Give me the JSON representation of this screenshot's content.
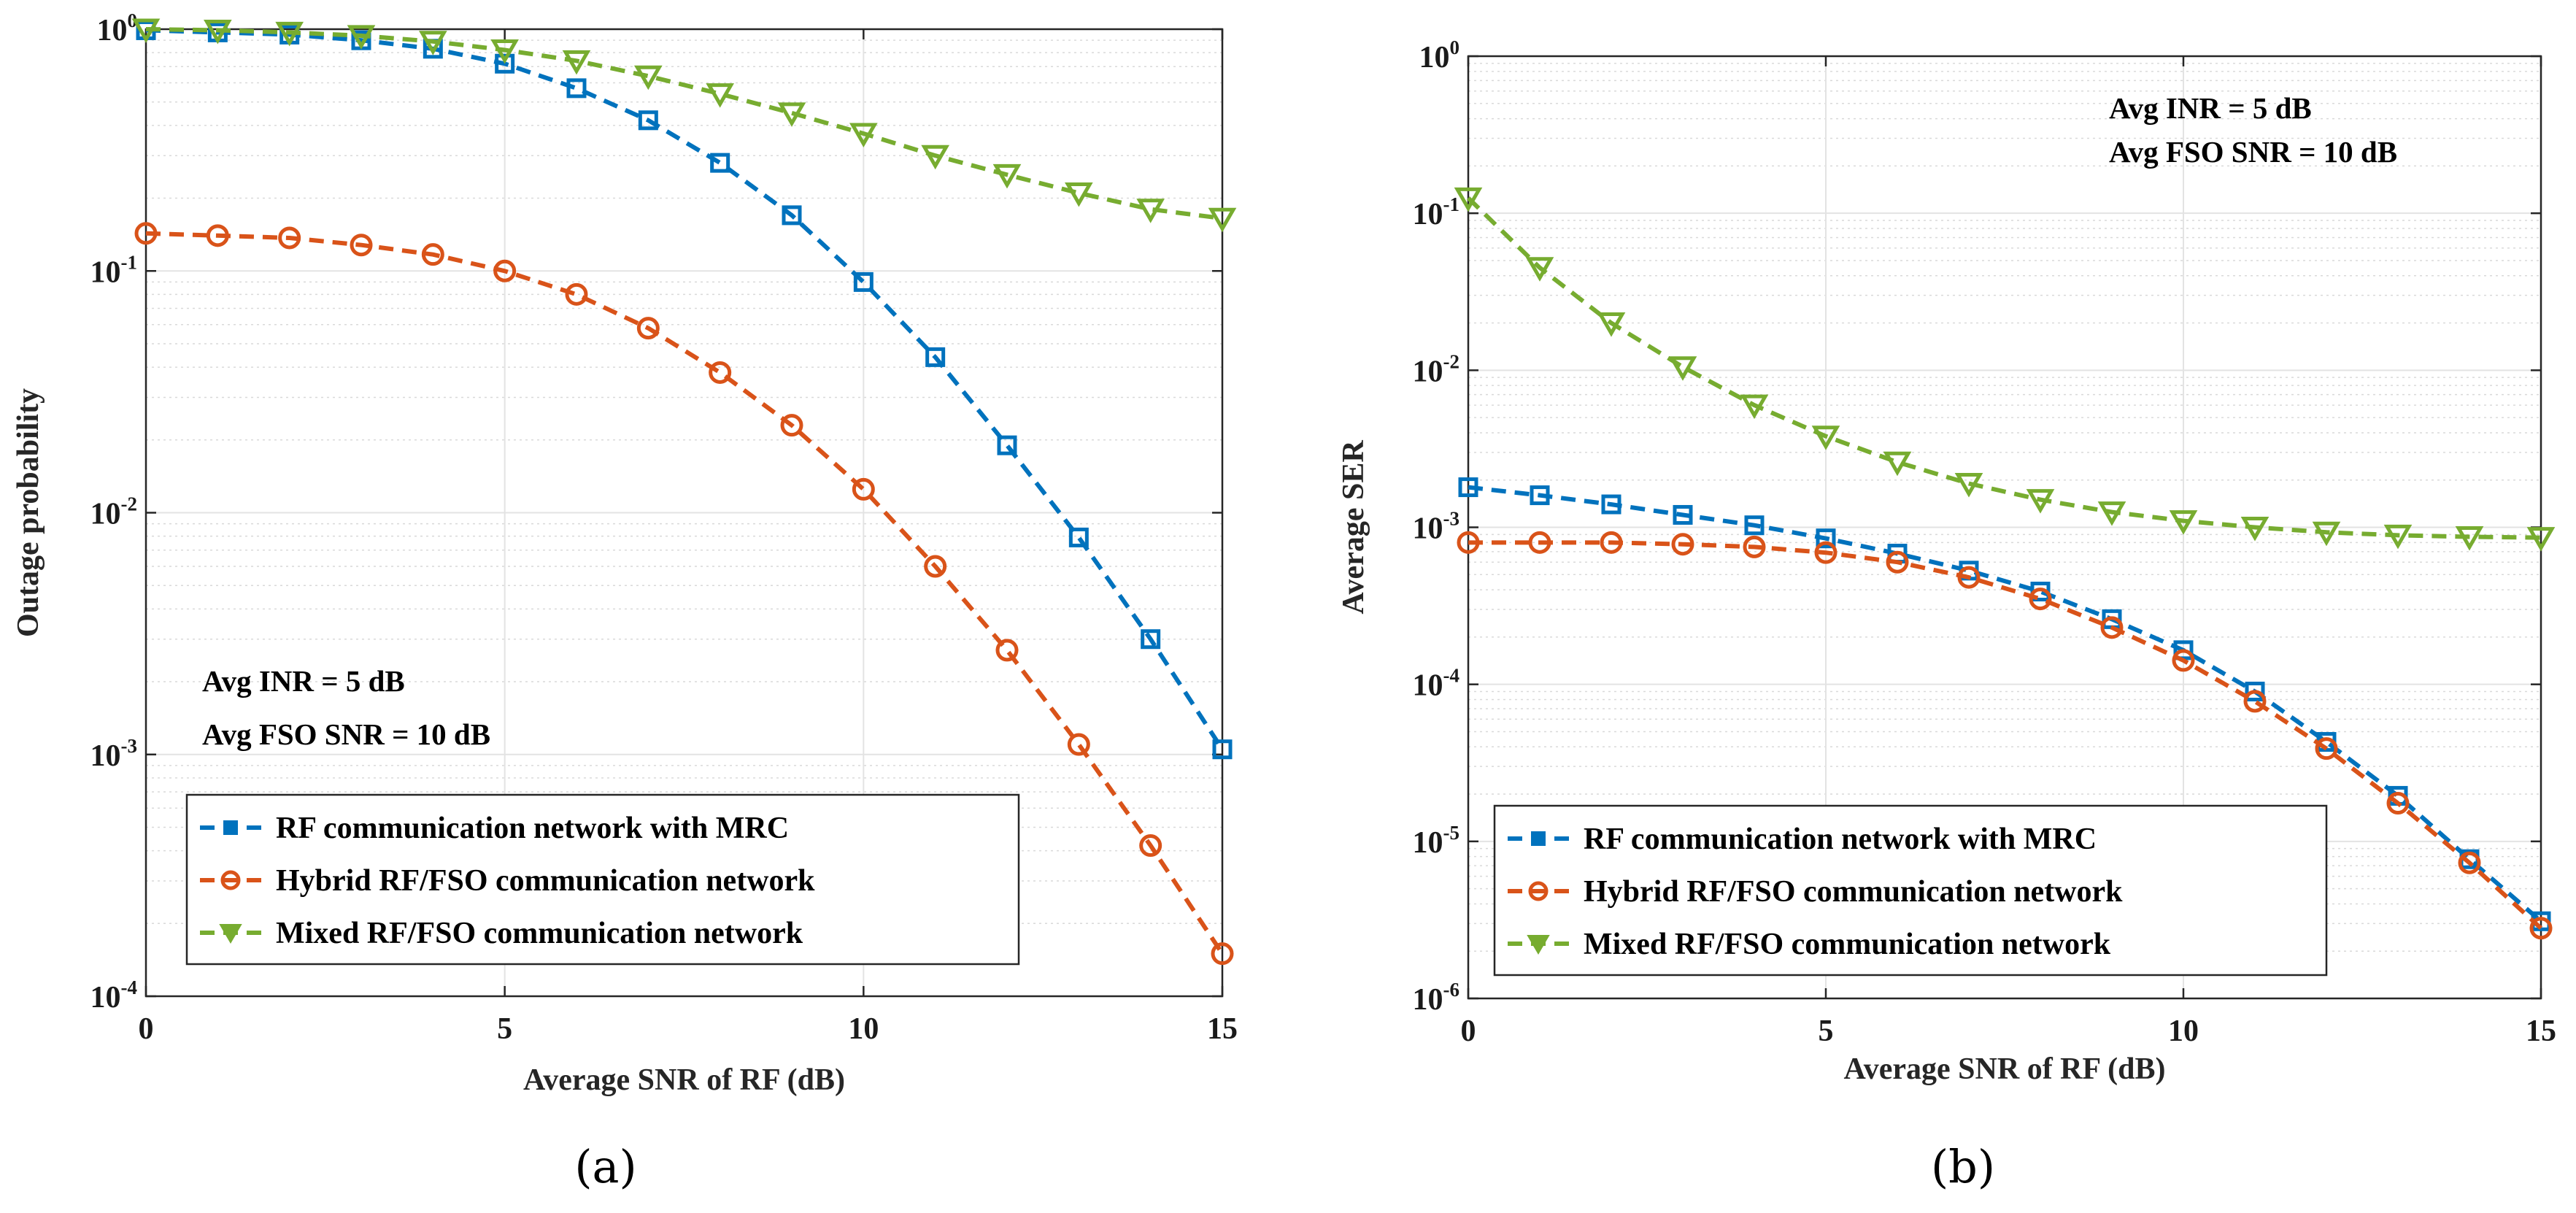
{
  "chart_data": [
    {
      "type": "line",
      "id": "a",
      "caption": "(a)",
      "xlabel": "Average SNR of RF (dB)",
      "ylabel": "Outage probability",
      "yscale": "log",
      "xlim": [
        0,
        15
      ],
      "ylim": [
        0.0001,
        1
      ],
      "xticks": [
        0,
        5,
        10,
        15
      ],
      "yticks": [
        {
          "value": 1,
          "base": "10",
          "exp": "0"
        },
        {
          "value": 0.1,
          "base": "10",
          "exp": "-1"
        },
        {
          "value": 0.01,
          "base": "10",
          "exp": "-2"
        },
        {
          "value": 0.001,
          "base": "10",
          "exp": "-3"
        },
        {
          "value": 0.0001,
          "base": "10",
          "exp": "-4"
        }
      ],
      "grid": true,
      "annotations": [
        "Avg INR = 5 dB",
        "Avg FSO SNR = 10 dB"
      ],
      "annotation_placement": "lower-left",
      "legend_placement": "bottom-left",
      "x": [
        0,
        1,
        2,
        3,
        4,
        5,
        6,
        7,
        8,
        9,
        10,
        11,
        12,
        13,
        14,
        15
      ],
      "series": [
        {
          "name": "RF communication network with MRC",
          "color": "#0072BD",
          "marker": "square",
          "values": [
            0.99,
            0.97,
            0.95,
            0.9,
            0.83,
            0.72,
            0.57,
            0.42,
            0.28,
            0.17,
            0.09,
            0.044,
            0.019,
            0.0079,
            0.003,
            0.00105
          ]
        },
        {
          "name": "Hybrid RF/FSO communication network",
          "color": "#D95319",
          "marker": "circle",
          "values": [
            0.143,
            0.14,
            0.137,
            0.128,
            0.117,
            0.1,
            0.08,
            0.058,
            0.038,
            0.023,
            0.0125,
            0.006,
            0.0027,
            0.0011,
            0.00042,
            0.00015
          ]
        },
        {
          "name": "Mixed RF/FSO communication network",
          "color": "#77AC30",
          "marker": "triangle-down",
          "values": [
            1.0,
            0.99,
            0.97,
            0.94,
            0.89,
            0.82,
            0.74,
            0.64,
            0.54,
            0.45,
            0.37,
            0.3,
            0.25,
            0.21,
            0.18,
            0.165
          ]
        }
      ]
    },
    {
      "type": "line",
      "id": "b",
      "caption": "(b)",
      "xlabel": "Average SNR of RF (dB)",
      "ylabel": "Average SER",
      "yscale": "log",
      "xlim": [
        0,
        15
      ],
      "ylim": [
        1e-06,
        1
      ],
      "xticks": [
        0,
        5,
        10,
        15
      ],
      "yticks": [
        {
          "value": 1,
          "base": "10",
          "exp": "0"
        },
        {
          "value": 0.1,
          "base": "10",
          "exp": "-1"
        },
        {
          "value": 0.01,
          "base": "10",
          "exp": "-2"
        },
        {
          "value": 0.001,
          "base": "10",
          "exp": "-3"
        },
        {
          "value": 0.0001,
          "base": "10",
          "exp": "-4"
        },
        {
          "value": 1e-05,
          "base": "10",
          "exp": "-5"
        },
        {
          "value": 1e-06,
          "base": "10",
          "exp": "-6"
        }
      ],
      "grid": true,
      "annotations": [
        "Avg INR = 5 dB",
        "Avg FSO SNR = 10 dB"
      ],
      "annotation_placement": "top-right",
      "legend_placement": "bottom-left",
      "x": [
        0,
        1,
        2,
        3,
        4,
        5,
        6,
        7,
        8,
        9,
        10,
        11,
        12,
        13,
        14,
        15
      ],
      "series": [
        {
          "name": "RF communication network with MRC",
          "color": "#0072BD",
          "marker": "square",
          "values": [
            0.0018,
            0.0016,
            0.0014,
            0.0012,
            0.00103,
            0.00085,
            0.00068,
            0.00053,
            0.00039,
            0.00026,
            0.000165,
            9e-05,
            4.3e-05,
            1.95e-05,
            7.7e-06,
            3.1e-06
          ]
        },
        {
          "name": "Hybrid RF/FSO communication network",
          "color": "#D95319",
          "marker": "circle",
          "values": [
            0.0008,
            0.0008,
            0.0008,
            0.00078,
            0.00075,
            0.00069,
            0.0006,
            0.00048,
            0.00035,
            0.00023,
            0.000142,
            7.8e-05,
            3.9e-05,
            1.75e-05,
            7.3e-06,
            2.8e-06
          ]
        },
        {
          "name": "Mixed RF/FSO communication network",
          "color": "#77AC30",
          "marker": "triangle-down",
          "values": [
            0.125,
            0.045,
            0.02,
            0.0105,
            0.006,
            0.0038,
            0.0026,
            0.0019,
            0.0015,
            0.00125,
            0.0011,
            0.001,
            0.00093,
            0.00089,
            0.00087,
            0.00086
          ]
        }
      ]
    }
  ]
}
